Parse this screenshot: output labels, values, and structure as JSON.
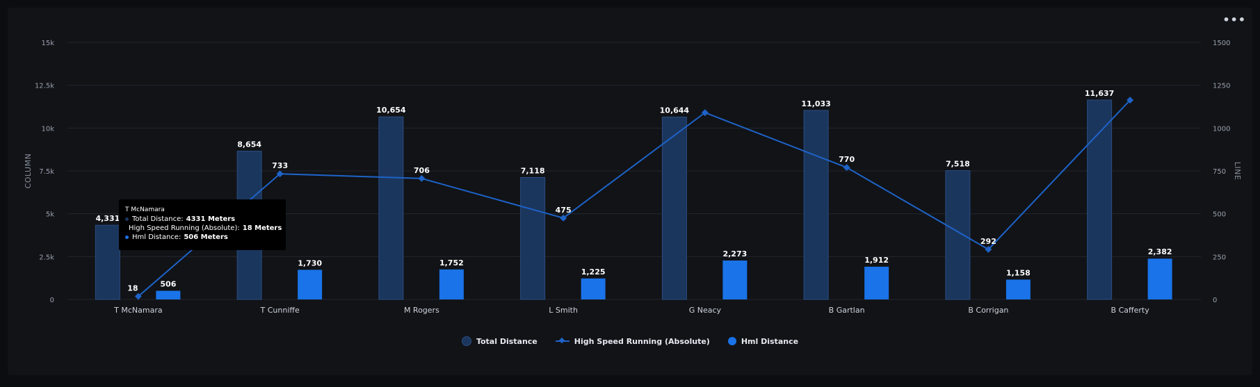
{
  "menu_label": "•••",
  "colors": {
    "total_distance": "#1b365d",
    "total_distance_stroke": "#2a4d80",
    "hsr": "#1e63c8",
    "hml": "#1a73e8",
    "grid": "#22262d"
  },
  "chart_data": {
    "type": "bar",
    "categories": [
      "T McNamara",
      "T Cunniffe",
      "M Rogers",
      "L Smith",
      "G Neacy",
      "B Gartlan",
      "B Corrigan",
      "B Cafferty"
    ],
    "series": [
      {
        "name": "Total Distance",
        "type": "bar",
        "axis": "left",
        "values": [
          4331,
          8654,
          10654,
          7118,
          10644,
          11033,
          7518,
          11637
        ],
        "labels": [
          "4,331",
          "8,654",
          "10,654",
          "7,118",
          "10,644",
          "11,033",
          "7,518",
          "11,637"
        ]
      },
      {
        "name": "High Speed Running (Absolute)",
        "type": "line",
        "axis": "right",
        "values": [
          18,
          733,
          706,
          475,
          1090,
          770,
          292,
          1163
        ],
        "labels": [
          "18",
          "733",
          "706",
          "475",
          "",
          "770",
          "292",
          ""
        ]
      },
      {
        "name": "Hml Distance",
        "type": "bar",
        "axis": "left",
        "values": [
          506,
          1730,
          1752,
          1225,
          2273,
          1912,
          1158,
          2382
        ],
        "labels": [
          "506",
          "1,730",
          "1,752",
          "1,225",
          "2,273",
          "1,912",
          "1,158",
          "2,382"
        ]
      }
    ],
    "y_left": {
      "title": "COLUMN",
      "range": [
        0,
        15000
      ],
      "ticks": [
        0,
        2500,
        5000,
        7500,
        10000,
        12500,
        15000
      ],
      "tick_labels": [
        "0",
        "2.5k",
        "5k",
        "7.5k",
        "10k",
        "12.5k",
        "15k"
      ]
    },
    "y_right": {
      "title": "LINE",
      "range": [
        0,
        1500
      ],
      "ticks": [
        0,
        250,
        500,
        750,
        1000,
        1250,
        1500
      ],
      "tick_labels": [
        "0",
        "250",
        "500",
        "750",
        "1000",
        "1250",
        "1500"
      ]
    },
    "grid": true,
    "legend_position": "bottom-center",
    "tooltip": {
      "title": "T McNamara",
      "rows": [
        {
          "label": "Total Distance:",
          "value": "4331 Meters"
        },
        {
          "label": "High Speed Running (Absolute):",
          "value": "18 Meters"
        },
        {
          "label": "Hml Distance:",
          "value": "506 Meters"
        }
      ]
    }
  },
  "legend": [
    {
      "label": "Total Distance"
    },
    {
      "label": "High Speed Running (Absolute)"
    },
    {
      "label": "Hml Distance"
    }
  ]
}
